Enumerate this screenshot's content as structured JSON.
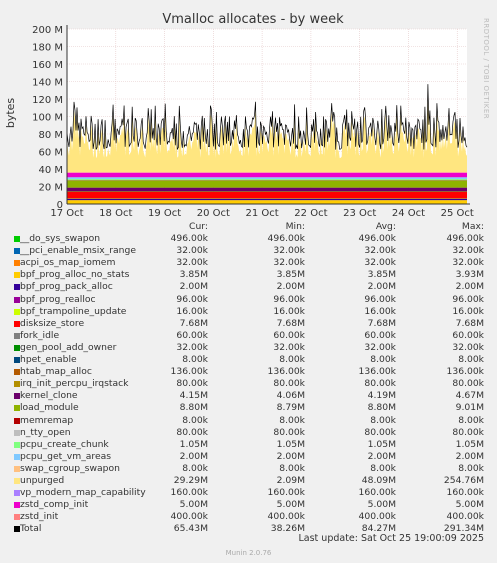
{
  "chart_data": {
    "type": "area",
    "title": "Vmalloc allocates - by week",
    "ylabel": "bytes",
    "side_label": "RRDTOOL / TOBI OETIKER",
    "yticks": [
      "0",
      "20 M",
      "40 M",
      "60 M",
      "80 M",
      "100 M",
      "120 M",
      "140 M",
      "160 M",
      "180 M",
      "200 M"
    ],
    "ylim": [
      0,
      200
    ],
    "y_unit": "M",
    "xticks": [
      "17 Oct",
      "18 Oct",
      "19 Oct",
      "20 Oct",
      "21 Oct",
      "22 Oct",
      "23 Oct",
      "24 Oct",
      "25 Oct"
    ],
    "grid": true,
    "stack_bands": [
      {
        "name": "Total",
        "color": "#000000",
        "kind": "line"
      }
    ],
    "series_summary": "stacked: fixed allocations ~29M, unpurged fluctuating 40-100M; total oscillating 65-125M"
  },
  "legend": {
    "headers": {
      "cur": "Cur:",
      "min": "Min:",
      "avg": "Avg:",
      "max": "Max:"
    },
    "rows": [
      {
        "name": "__do_sys_swapon",
        "color": "#00cc00",
        "cur": "496.00k",
        "min": "496.00k",
        "avg": "496.00k",
        "max": "496.00k"
      },
      {
        "name": "__pci_enable_msix_range",
        "color": "#0066b3",
        "cur": "32.00k",
        "min": "32.00k",
        "avg": "32.00k",
        "max": "32.00k"
      },
      {
        "name": "acpi_os_map_iomem",
        "color": "#ff8000",
        "cur": "32.00k",
        "min": "32.00k",
        "avg": "32.00k",
        "max": "32.00k"
      },
      {
        "name": "bpf_prog_alloc_no_stats",
        "color": "#ffcc00",
        "cur": "3.85M",
        "min": "3.85M",
        "avg": "3.85M",
        "max": "3.93M"
      },
      {
        "name": "bpf_prog_pack_alloc",
        "color": "#330099",
        "cur": "2.00M",
        "min": "2.00M",
        "avg": "2.00M",
        "max": "2.00M"
      },
      {
        "name": "bpf_prog_realloc",
        "color": "#990099",
        "cur": "96.00k",
        "min": "96.00k",
        "avg": "96.00k",
        "max": "96.00k"
      },
      {
        "name": "bpf_trampoline_update",
        "color": "#ccff00",
        "cur": "16.00k",
        "min": "16.00k",
        "avg": "16.00k",
        "max": "16.00k"
      },
      {
        "name": "disksize_store",
        "color": "#ff0000",
        "cur": "7.68M",
        "min": "7.68M",
        "avg": "7.68M",
        "max": "7.68M"
      },
      {
        "name": "fork_idle",
        "color": "#808080",
        "cur": "60.00k",
        "min": "60.00k",
        "avg": "60.00k",
        "max": "60.00k"
      },
      {
        "name": "gen_pool_add_owner",
        "color": "#008f00",
        "cur": "32.00k",
        "min": "32.00k",
        "avg": "32.00k",
        "max": "32.00k"
      },
      {
        "name": "hpet_enable",
        "color": "#00487d",
        "cur": "8.00k",
        "min": "8.00k",
        "avg": "8.00k",
        "max": "8.00k"
      },
      {
        "name": "htab_map_alloc",
        "color": "#b35a00",
        "cur": "136.00k",
        "min": "136.00k",
        "avg": "136.00k",
        "max": "136.00k"
      },
      {
        "name": "irq_init_percpu_irqstack",
        "color": "#b38f00",
        "cur": "80.00k",
        "min": "80.00k",
        "avg": "80.00k",
        "max": "80.00k"
      },
      {
        "name": "kernel_clone",
        "color": "#6b006b",
        "cur": "4.15M",
        "min": "4.06M",
        "avg": "4.19M",
        "max": "4.67M"
      },
      {
        "name": "load_module",
        "color": "#8fb300",
        "cur": "8.80M",
        "min": "8.79M",
        "avg": "8.80M",
        "max": "9.01M"
      },
      {
        "name": "memremap",
        "color": "#b30000",
        "cur": "8.00k",
        "min": "8.00k",
        "avg": "8.00k",
        "max": "8.00k"
      },
      {
        "name": "n_tty_open",
        "color": "#bebebe",
        "cur": "80.00k",
        "min": "80.00k",
        "avg": "80.00k",
        "max": "80.00k"
      },
      {
        "name": "pcpu_create_chunk",
        "color": "#80ff80",
        "cur": "1.05M",
        "min": "1.05M",
        "avg": "1.05M",
        "max": "1.05M"
      },
      {
        "name": "pcpu_get_vm_areas",
        "color": "#80c9ff",
        "cur": "2.00M",
        "min": "2.00M",
        "avg": "2.00M",
        "max": "2.00M"
      },
      {
        "name": "swap_cgroup_swapon",
        "color": "#ffc080",
        "cur": "8.00k",
        "min": "8.00k",
        "avg": "8.00k",
        "max": "8.00k"
      },
      {
        "name": "unpurged",
        "color": "#ffe680",
        "cur": "29.29M",
        "min": "2.09M",
        "avg": "48.09M",
        "max": "254.76M"
      },
      {
        "name": "vp_modern_map_capability",
        "color": "#aa80ff",
        "cur": "160.00k",
        "min": "160.00k",
        "avg": "160.00k",
        "max": "160.00k"
      },
      {
        "name": "zstd_comp_init",
        "color": "#ee00cc",
        "cur": "5.00M",
        "min": "5.00M",
        "avg": "5.00M",
        "max": "5.00M"
      },
      {
        "name": "zstd_init",
        "color": "#ff8080",
        "cur": "400.00k",
        "min": "400.00k",
        "avg": "400.00k",
        "max": "400.00k"
      },
      {
        "name": "Total",
        "color": "#000000",
        "cur": "65.43M",
        "min": "38.26M",
        "avg": "84.27M",
        "max": "291.34M"
      }
    ]
  },
  "footer": {
    "last_update": "Last update: Sat Oct 25 19:00:09 2025",
    "version": "Munin 2.0.76"
  }
}
